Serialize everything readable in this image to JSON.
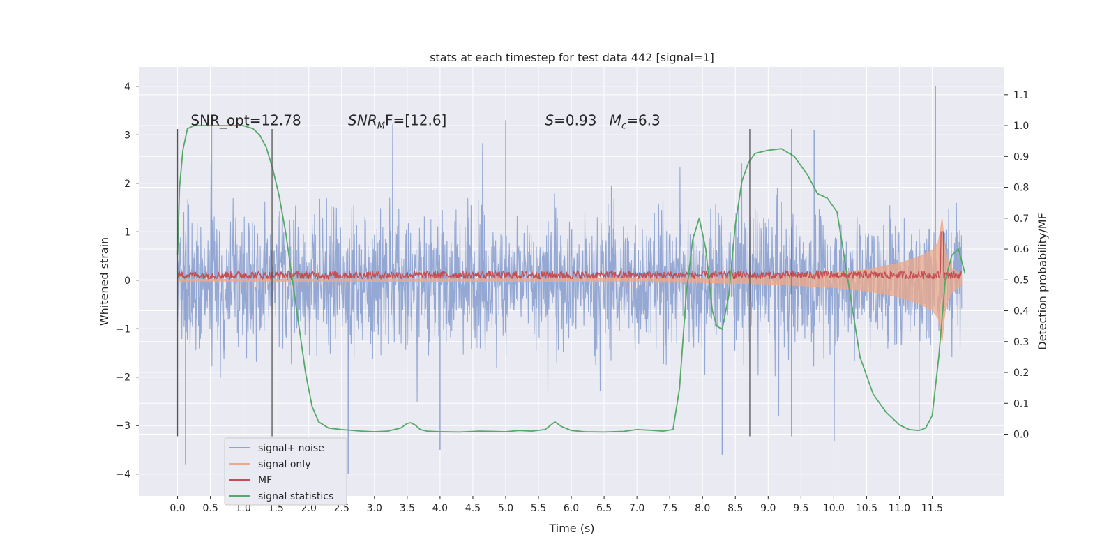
{
  "chart_data": {
    "type": "line",
    "title": "stats at each timestep for test data 442 [signal=1]",
    "xlabel": "Time (s)",
    "ylabel_left": "Whitened strain",
    "ylabel_right": "Detection probability/MF",
    "xlim": [
      -0.58,
      12.6
    ],
    "ylim_left": [
      -4.45,
      4.4
    ],
    "ylim_right": [
      -0.2,
      1.19
    ],
    "x_ticks": [
      0.0,
      0.5,
      1.0,
      1.5,
      2.0,
      2.5,
      3.0,
      3.5,
      4.0,
      4.5,
      5.0,
      5.5,
      6.0,
      6.5,
      7.0,
      7.5,
      8.0,
      8.5,
      9.0,
      9.5,
      10.0,
      10.5,
      11.0,
      11.5
    ],
    "x_tick_labels": [
      "0.0",
      "0.5",
      "1.0",
      "1.5",
      "2.0",
      "2.5",
      "3.0",
      "3.5",
      "4.0",
      "4.5",
      "5.0",
      "5.5",
      "6.0",
      "6.5",
      "7.0",
      "7.5",
      "8.0",
      "8.5",
      "9.0",
      "9.5",
      "10.0",
      "10.5",
      "11.0",
      "11.5"
    ],
    "y_left_ticks": [
      -4,
      -3,
      -2,
      -1,
      0,
      1,
      2,
      3,
      4
    ],
    "y_left_tick_labels": [
      "−4",
      "−3",
      "−2",
      "−1",
      "0",
      "1",
      "2",
      "3",
      "4"
    ],
    "y_right_ticks": [
      0.0,
      0.1,
      0.2,
      0.3,
      0.4,
      0.5,
      0.6,
      0.7,
      0.8,
      0.9,
      1.0,
      1.1
    ],
    "y_right_tick_labels": [
      "0.0",
      "0.1",
      "0.2",
      "0.3",
      "0.4",
      "0.5",
      "0.6",
      "0.7",
      "0.8",
      "0.9",
      "1.0",
      "1.1"
    ],
    "annotations": [
      {
        "text": "SNR_opt=12.78",
        "x": 0.2,
        "y": 3.2
      },
      {
        "text": "SNR",
        "sub": "M",
        "suffix": "F=[12.6]",
        "x": 2.6,
        "y": 3.2,
        "italic": true
      },
      {
        "text": "S",
        "suffix": "=0.93   ",
        "text2": "M",
        "sub2": "c",
        "suffix2": "=6.3",
        "x": 5.6,
        "y": 3.2
      }
    ],
    "vertical_lines_x": [
      0.0,
      1.44,
      8.72,
      9.36
    ],
    "vertical_lines_yrange": [
      -3.22,
      3.12
    ],
    "legend": {
      "position": "lower-left",
      "entries": [
        {
          "label": "signal+ noise",
          "color": "#8fa4d1"
        },
        {
          "label": "signal only",
          "color": "#eda98a"
        },
        {
          "label": "MF",
          "color": "#c44e52"
        },
        {
          "label": "signal statistics",
          "color": "#55a868"
        }
      ]
    },
    "series": [
      {
        "name": "signal statistics",
        "axis": "right",
        "color": "#55a868",
        "x": [
          0.0,
          0.03,
          0.08,
          0.15,
          0.25,
          0.4,
          0.6,
          0.8,
          1.0,
          1.15,
          1.25,
          1.35,
          1.45,
          1.55,
          1.65,
          1.75,
          1.85,
          1.95,
          2.05,
          2.15,
          2.3,
          2.5,
          2.8,
          3.0,
          3.2,
          3.4,
          3.5,
          3.55,
          3.62,
          3.7,
          3.8,
          4.0,
          4.3,
          4.6,
          4.8,
          5.0,
          5.2,
          5.4,
          5.6,
          5.75,
          5.85,
          6.0,
          6.2,
          6.5,
          6.8,
          7.0,
          7.2,
          7.4,
          7.55,
          7.65,
          7.75,
          7.85,
          7.95,
          8.05,
          8.15,
          8.22,
          8.3,
          8.4,
          8.5,
          8.6,
          8.7,
          8.8,
          9.0,
          9.2,
          9.4,
          9.6,
          9.75,
          9.9,
          10.05,
          10.2,
          10.4,
          10.6,
          10.8,
          11.0,
          11.15,
          11.3,
          11.4,
          11.5,
          11.6,
          11.7,
          11.8,
          11.9,
          12.0
        ],
        "y": [
          0.58,
          0.8,
          0.92,
          0.99,
          1.0,
          1.0,
          1.0,
          1.0,
          1.0,
          0.99,
          0.97,
          0.93,
          0.86,
          0.77,
          0.65,
          0.5,
          0.35,
          0.2,
          0.09,
          0.04,
          0.02,
          0.015,
          0.01,
          0.008,
          0.01,
          0.02,
          0.035,
          0.037,
          0.03,
          0.015,
          0.01,
          0.008,
          0.007,
          0.01,
          0.009,
          0.008,
          0.012,
          0.01,
          0.015,
          0.04,
          0.025,
          0.012,
          0.008,
          0.007,
          0.009,
          0.015,
          0.013,
          0.01,
          0.015,
          0.15,
          0.45,
          0.63,
          0.7,
          0.6,
          0.4,
          0.35,
          0.34,
          0.45,
          0.68,
          0.82,
          0.88,
          0.91,
          0.92,
          0.925,
          0.9,
          0.84,
          0.78,
          0.765,
          0.72,
          0.52,
          0.25,
          0.13,
          0.07,
          0.03,
          0.015,
          0.012,
          0.02,
          0.06,
          0.25,
          0.5,
          0.58,
          0.6,
          0.52
        ],
        "yaxis_note": "plotted against right axis"
      },
      {
        "name": "MF",
        "axis": "left",
        "color": "#c44e52",
        "baseline": 0.1,
        "amplitude": 0.08,
        "spike_x": 11.65,
        "spike_y": 1.0
      },
      {
        "name": "signal only",
        "axis": "left",
        "color": "#eda98a",
        "envelope_x": [
          0.0,
          6.0,
          8.0,
          9.0,
          10.0,
          10.5,
          11.0,
          11.3,
          11.5,
          11.6,
          11.65,
          11.7,
          11.8,
          11.95
        ],
        "envelope_y": [
          0.02,
          0.03,
          0.05,
          0.08,
          0.15,
          0.22,
          0.35,
          0.48,
          0.62,
          0.8,
          1.3,
          0.55,
          0.25,
          0.1
        ]
      },
      {
        "name": "signal+ noise",
        "axis": "left",
        "color": "#8fa4d1",
        "x_range": [
          0.0,
          11.95
        ],
        "typical_amplitude": 1.2,
        "max_peak": 4.0,
        "min_trough": -3.8
      }
    ]
  }
}
